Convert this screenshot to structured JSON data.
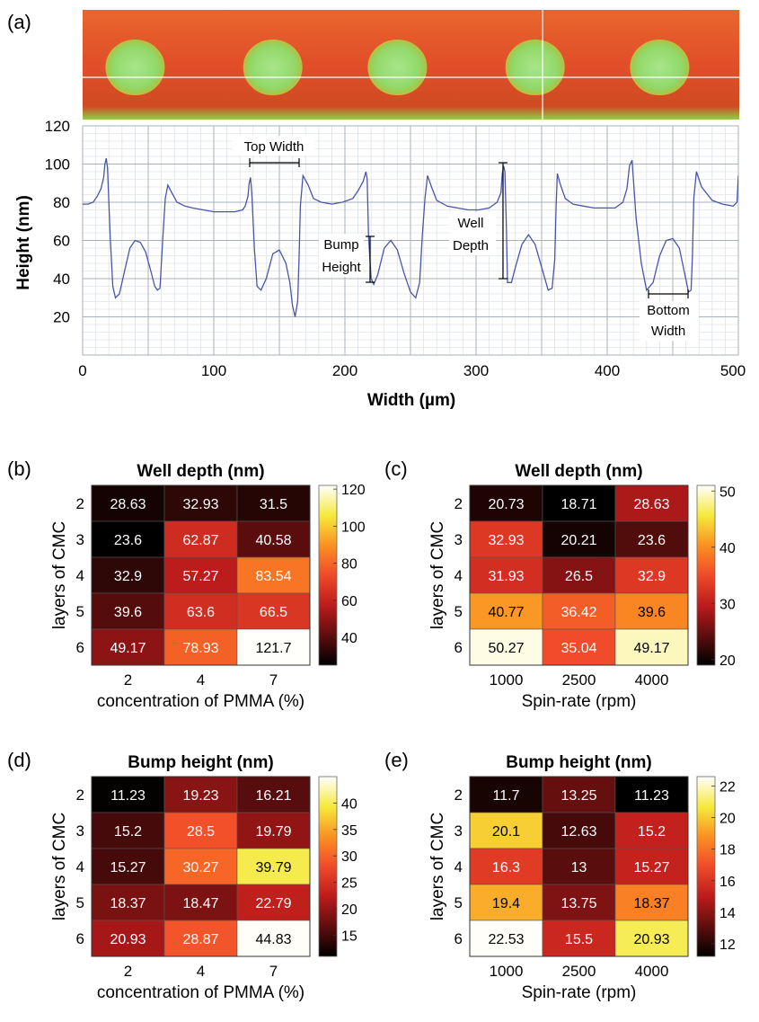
{
  "panel_labels": [
    "(a)",
    "(b)",
    "(c)",
    "(d)",
    "(e)"
  ],
  "colors": {
    "profile_line": "#4a55a8",
    "map_high": "#e0552e",
    "map_low": "#9fe07c",
    "map_edge": "#c9c83a",
    "cross_hair": "#ffffff"
  },
  "chart_data": [
    {
      "panel": "(a)",
      "type": "line",
      "xlabel": "Width (µm)",
      "ylabel": "Height (nm)",
      "xlim": [
        0,
        500
      ],
      "ylim": [
        0,
        120
      ],
      "xticks": [
        0,
        100,
        200,
        300,
        400,
        500
      ],
      "yticks": [
        20,
        40,
        60,
        80,
        100,
        120
      ],
      "grid": true,
      "x": [
        0,
        4,
        8,
        11,
        14,
        16,
        17,
        18,
        19,
        21,
        23,
        25,
        28,
        32,
        36,
        40,
        44,
        48,
        52,
        55,
        57,
        59,
        61,
        63,
        65,
        68,
        72,
        78,
        84,
        92,
        100,
        108,
        116,
        122,
        124,
        126,
        127,
        128,
        129,
        131,
        133,
        136,
        140,
        145,
        150,
        155,
        158,
        160,
        162,
        164,
        165,
        166,
        168,
        172,
        176,
        182,
        190,
        198,
        206,
        210,
        214,
        216,
        217,
        218,
        220,
        222,
        225,
        230,
        235,
        240,
        245,
        250,
        254,
        257,
        259,
        261,
        263,
        266,
        270,
        278,
        286,
        294,
        302,
        310,
        316,
        319,
        320,
        321,
        322,
        323,
        324,
        327,
        330,
        335,
        340,
        345,
        350,
        355,
        358,
        360,
        361,
        362,
        364,
        368,
        374,
        382,
        390,
        398,
        406,
        412,
        415,
        416,
        417,
        419,
        422,
        426,
        430,
        435,
        440,
        445,
        450,
        455,
        459,
        462,
        464,
        465,
        466,
        468,
        472,
        480,
        488,
        496,
        499,
        500
      ],
      "y": [
        79,
        79,
        80,
        83,
        87,
        93,
        100,
        103,
        98,
        62,
        36,
        30,
        32,
        44,
        56,
        60,
        59,
        54,
        44,
        36,
        34,
        35,
        60,
        82,
        89,
        85,
        80,
        78,
        77,
        76,
        75,
        75,
        75,
        76,
        78,
        83,
        90,
        93,
        85,
        55,
        36,
        34,
        40,
        53,
        55,
        48,
        38,
        26,
        20,
        28,
        50,
        78,
        94,
        89,
        82,
        80,
        79,
        80,
        82,
        86,
        91,
        96,
        92,
        62,
        40,
        37,
        42,
        56,
        60,
        55,
        43,
        33,
        30,
        38,
        62,
        82,
        94,
        88,
        81,
        78,
        77,
        76,
        76,
        77,
        80,
        85,
        95,
        99,
        96,
        70,
        38,
        38,
        46,
        58,
        63,
        58,
        46,
        34,
        35,
        50,
        78,
        95,
        90,
        82,
        79,
        78,
        77,
        77,
        77,
        80,
        87,
        93,
        99,
        102,
        72,
        48,
        34,
        38,
        52,
        60,
        61,
        56,
        43,
        33,
        34,
        52,
        82,
        96,
        88,
        81,
        79,
        78,
        80,
        94
      ]
    },
    {
      "panel": "(b)",
      "type": "heatmap",
      "title": "Well depth (nm)",
      "xlabel": "concentration of PMMA (%)",
      "ylabel": "layers of CMC",
      "x_categories": [
        "2",
        "4",
        "7"
      ],
      "y_categories": [
        "2",
        "3",
        "4",
        "5",
        "6"
      ],
      "values": [
        [
          28.63,
          32.93,
          31.5
        ],
        [
          23.6,
          62.87,
          40.58
        ],
        [
          32.9,
          57.27,
          83.54
        ],
        [
          39.6,
          63.6,
          66.5
        ],
        [
          49.17,
          78.93,
          121.7
        ]
      ],
      "value_labels": [
        [
          "28.63",
          "32.93",
          "31.5"
        ],
        [
          "23.6",
          "62.87",
          "40.58"
        ],
        [
          "32.9",
          "57.27",
          "83.54"
        ],
        [
          "39.6",
          "63.6",
          "66.5"
        ],
        [
          "49.17",
          "78.93",
          "121.7"
        ]
      ],
      "colorbar_range": [
        25,
        122
      ],
      "colorbar_ticks": [
        "40",
        "60",
        "80",
        "100",
        "120"
      ],
      "colorbar_tick_values": [
        40,
        60,
        80,
        100,
        120
      ]
    },
    {
      "panel": "(c)",
      "type": "heatmap",
      "title": "Well depth (nm)",
      "xlabel": "Spin-rate (rpm)",
      "ylabel": "layers of CMC",
      "x_categories": [
        "1000",
        "2500",
        "4000"
      ],
      "y_categories": [
        "2",
        "3",
        "4",
        "5",
        "6"
      ],
      "values": [
        [
          20.73,
          18.71,
          28.63
        ],
        [
          32.93,
          20.21,
          23.6
        ],
        [
          31.93,
          26.5,
          32.9
        ],
        [
          40.77,
          36.42,
          39.6
        ],
        [
          50.27,
          35.04,
          49.17
        ]
      ],
      "value_labels": [
        [
          "20.73",
          "18.71",
          "28.63"
        ],
        [
          "32.93",
          "20.21",
          "23.6"
        ],
        [
          "31.93",
          "26.5",
          "32.9"
        ],
        [
          "40.77",
          "36.42",
          "39.6"
        ],
        [
          "50.27",
          "35.04",
          "49.17"
        ]
      ],
      "colorbar_range": [
        19,
        51
      ],
      "colorbar_ticks": [
        "20",
        "30",
        "40",
        "50"
      ],
      "colorbar_tick_values": [
        20,
        30,
        40,
        50
      ]
    },
    {
      "panel": "(d)",
      "type": "heatmap",
      "title": "Bump height (nm)",
      "xlabel": "concentration of PMMA (%)",
      "ylabel": "layers of CMC",
      "x_categories": [
        "2",
        "4",
        "7"
      ],
      "y_categories": [
        "2",
        "3",
        "4",
        "5",
        "6"
      ],
      "values": [
        [
          11.23,
          19.23,
          16.21
        ],
        [
          15.2,
          28.5,
          19.79
        ],
        [
          15.27,
          30.27,
          39.79
        ],
        [
          18.37,
          18.47,
          22.79
        ],
        [
          20.93,
          28.87,
          44.83
        ]
      ],
      "value_labels": [
        [
          "11.23",
          "19.23",
          "16.21"
        ],
        [
          "15.2",
          "28.5",
          "19.79"
        ],
        [
          "15.27",
          "30.27",
          "39.79"
        ],
        [
          "18.37",
          "18.47",
          "22.79"
        ],
        [
          "20.93",
          "28.87",
          "44.83"
        ]
      ],
      "colorbar_range": [
        11,
        45
      ],
      "colorbar_ticks": [
        "15",
        "20",
        "25",
        "30",
        "35",
        "40"
      ],
      "colorbar_tick_values": [
        15,
        20,
        25,
        30,
        35,
        40
      ]
    },
    {
      "panel": "(e)",
      "type": "heatmap",
      "title": "Bump height (nm)",
      "xlabel": "Spin-rate (rpm)",
      "ylabel": "layers of CMC",
      "x_categories": [
        "1000",
        "2500",
        "4000"
      ],
      "y_categories": [
        "2",
        "3",
        "4",
        "5",
        "6"
      ],
      "values": [
        [
          11.7,
          13.25,
          11.23
        ],
        [
          20.1,
          12.63,
          15.2
        ],
        [
          16.3,
          13,
          15.27
        ],
        [
          19.4,
          13.75,
          18.37
        ],
        [
          22.53,
          15.5,
          20.93
        ]
      ],
      "value_labels": [
        [
          "11.7",
          "13.25",
          "11.23"
        ],
        [
          "20.1",
          "12.63",
          "15.2"
        ],
        [
          "16.3",
          "13",
          "15.27"
        ],
        [
          "19.4",
          "13.75",
          "18.37"
        ],
        [
          "22.53",
          "15.5",
          "20.93"
        ]
      ],
      "colorbar_range": [
        11.2,
        22.6
      ],
      "colorbar_ticks": [
        "12",
        "14",
        "16",
        "18",
        "20",
        "22"
      ],
      "colorbar_tick_values": [
        12,
        14,
        16,
        18,
        20,
        22
      ]
    }
  ],
  "annotations": {
    "top_width": "Top Width",
    "bump_height": [
      "Bump",
      "Height"
    ],
    "well_depth": [
      "Well",
      "Depth"
    ],
    "bottom_width": [
      "Bottom",
      "Width"
    ]
  }
}
